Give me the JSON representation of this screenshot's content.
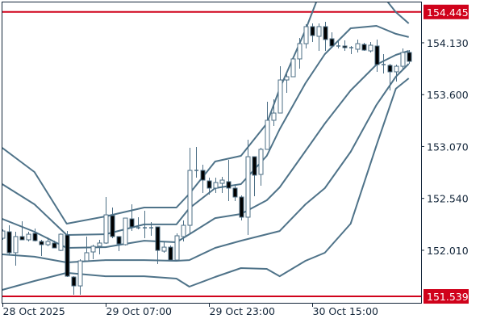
{
  "chart_data": {
    "type": "candlestick",
    "title": "",
    "xlabel": "",
    "ylabel": "",
    "ylim": [
      151.5,
      154.57
    ],
    "grid": false,
    "legend": "none",
    "colors": {
      "candle": "#4d6f86",
      "bearish_body": "#000000",
      "bullish_body": "#ffffff",
      "bands": "#4f7389",
      "level_line": "#d0021b",
      "frame": "#13263a",
      "axis_text": "#13263a"
    },
    "y_ticks": [
      "154.130",
      "153.600",
      "153.070",
      "152.540",
      "152.010"
    ],
    "x_ticks": [
      {
        "index": 0,
        "label": "28 Oct 2025"
      },
      {
        "index": 16,
        "label": "29 Oct 07:00"
      },
      {
        "index": 32,
        "label": "29 Oct 23:00"
      },
      {
        "index": 48,
        "label": "30 Oct 15:00"
      }
    ],
    "levels": [
      {
        "value": 154.445,
        "label": "154.445"
      },
      {
        "value": 151.539,
        "label": "151.539"
      }
    ],
    "candles_ohlc": [
      [
        152.133,
        152.224,
        152.117,
        152.207
      ],
      [
        152.199,
        152.265,
        151.968,
        151.985
      ],
      [
        151.985,
        152.199,
        151.853,
        152.15
      ],
      [
        152.15,
        152.306,
        152.117,
        152.117
      ],
      [
        152.117,
        152.199,
        152.1,
        152.174
      ],
      [
        152.183,
        152.232,
        152.1,
        152.108
      ],
      [
        152.1,
        152.117,
        151.952,
        152.067
      ],
      [
        152.067,
        152.141,
        152.051,
        152.1
      ],
      [
        152.084,
        152.108,
        152.034,
        152.034
      ],
      [
        152.009,
        152.183,
        152.001,
        152.174
      ],
      [
        152.166,
        152.207,
        151.737,
        151.745
      ],
      [
        151.737,
        151.745,
        151.556,
        151.646
      ],
      [
        151.646,
        151.919,
        151.556,
        151.902
      ],
      [
        151.902,
        152.15,
        151.894,
        151.985
      ],
      [
        151.993,
        152.067,
        151.919,
        152.051
      ],
      [
        152.051,
        152.117,
        151.968,
        152.084
      ],
      [
        152.084,
        152.554,
        152.075,
        152.372
      ],
      [
        152.364,
        152.447,
        152.133,
        152.15
      ],
      [
        152.15,
        152.15,
        152.001,
        152.075
      ],
      [
        152.067,
        152.339,
        152.059,
        152.339
      ],
      [
        152.331,
        152.48,
        152.207,
        152.249
      ],
      [
        152.24,
        152.348,
        152.224,
        152.24
      ],
      [
        152.24,
        152.414,
        152.133,
        152.24
      ],
      [
        152.24,
        152.298,
        152.158,
        152.24
      ],
      [
        152.249,
        152.249,
        151.869,
        152.009
      ],
      [
        152.001,
        152.1,
        151.985,
        152.042
      ],
      [
        152.042,
        152.059,
        151.91,
        151.91
      ],
      [
        151.91,
        152.183,
        151.91,
        152.158
      ],
      [
        152.15,
        152.315,
        152.1,
        152.265
      ],
      [
        152.265,
        153.057,
        152.183,
        152.826
      ],
      [
        152.826,
        153.065,
        152.752,
        152.826
      ],
      [
        152.826,
        152.884,
        152.595,
        152.727
      ],
      [
        152.719,
        152.752,
        152.579,
        152.645
      ],
      [
        152.645,
        152.752,
        152.595,
        152.702
      ],
      [
        152.694,
        152.76,
        152.595,
        152.727
      ],
      [
        152.711,
        152.933,
        152.513,
        152.645
      ],
      [
        152.645,
        152.678,
        152.513,
        152.554
      ],
      [
        152.554,
        152.57,
        152.315,
        152.348
      ],
      [
        152.348,
        153.14,
        152.166,
        152.966
      ],
      [
        152.966,
        152.966,
        152.562,
        152.777
      ],
      [
        152.785,
        153.057,
        152.669,
        153.041
      ],
      [
        153.041,
        153.527,
        153.041,
        153.338
      ],
      [
        153.338,
        153.552,
        153.28,
        153.412
      ],
      [
        153.412,
        153.89,
        153.412,
        153.75
      ],
      [
        153.75,
        153.808,
        153.618,
        153.783
      ],
      [
        153.783,
        153.965,
        153.783,
        153.965
      ],
      [
        153.965,
        154.179,
        153.866,
        154.121
      ],
      [
        154.121,
        154.319,
        154.072,
        154.295
      ],
      [
        154.295,
        154.328,
        154.138,
        154.204
      ],
      [
        154.196,
        154.328,
        154.047,
        154.295
      ],
      [
        154.295,
        154.344,
        154.047,
        154.163
      ],
      [
        154.171,
        154.237,
        154.08,
        154.097
      ],
      [
        154.097,
        154.146,
        154.072,
        154.097
      ],
      [
        154.097,
        154.154,
        154.047,
        154.08
      ],
      [
        154.08,
        154.097,
        154.014,
        154.08
      ],
      [
        154.064,
        154.163,
        154.031,
        154.121
      ],
      [
        154.113,
        154.13,
        154.047,
        154.055
      ],
      [
        154.047,
        154.138,
        154.031,
        154.105
      ],
      [
        154.097,
        154.163,
        153.833,
        153.907
      ],
      [
        153.907,
        154.014,
        153.816,
        153.907
      ],
      [
        153.899,
        153.915,
        153.643,
        153.833
      ],
      [
        153.833,
        153.907,
        153.734,
        153.89
      ],
      [
        153.89,
        154.072,
        153.849,
        154.031
      ],
      [
        154.031,
        154.055,
        153.915,
        153.94
      ]
    ],
    "band_index": [
      0,
      5,
      10,
      16,
      22,
      27,
      29,
      33,
      37,
      41,
      43,
      47,
      50,
      54,
      58,
      61,
      63
    ],
    "bands": [
      {
        "id": "upper-2",
        "values": [
          153.057,
          152.81,
          152.282,
          152.356,
          152.447,
          152.447,
          152.587,
          152.917,
          152.975,
          153.305,
          153.66,
          154.262,
          154.773,
          154.98,
          154.691,
          154.443,
          154.328
        ]
      },
      {
        "id": "upper-1",
        "values": [
          152.686,
          152.48,
          152.166,
          152.174,
          152.274,
          152.274,
          152.439,
          152.645,
          152.686,
          152.975,
          153.247,
          153.717,
          154.014,
          154.278,
          154.303,
          154.221,
          154.188
        ]
      },
      {
        "id": "middle",
        "values": [
          152.331,
          152.199,
          152.034,
          152.042,
          152.108,
          152.092,
          152.174,
          152.339,
          152.381,
          152.521,
          152.653,
          153.024,
          153.305,
          153.643,
          153.907,
          154.006,
          154.047
        ]
      },
      {
        "id": "lower-1",
        "values": [
          151.968,
          151.944,
          151.886,
          151.91,
          151.91,
          151.902,
          151.91,
          152.034,
          152.108,
          152.174,
          152.207,
          152.48,
          152.645,
          153.016,
          153.495,
          153.783,
          153.915
        ]
      },
      {
        "id": "lower-2",
        "values": [
          151.605,
          151.696,
          151.779,
          151.745,
          151.745,
          151.721,
          151.638,
          151.737,
          151.828,
          151.82,
          151.745,
          151.902,
          151.985,
          152.282,
          153.082,
          153.66,
          153.767
        ]
      }
    ]
  }
}
